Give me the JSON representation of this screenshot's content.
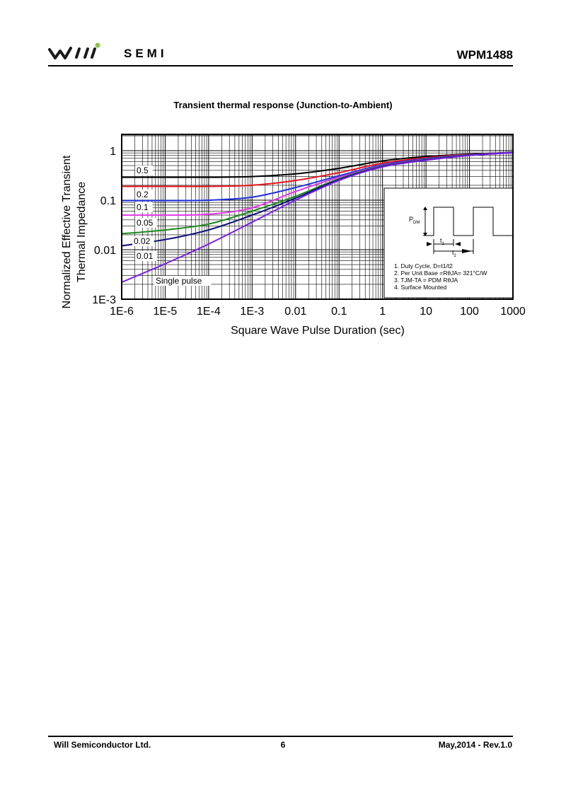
{
  "header": {
    "logo_text": "SEMI",
    "doc_id": "WPM1488",
    "brand_colors": {
      "wave": "#1a1a1a",
      "dot": "#8dc63f"
    }
  },
  "chart_data": {
    "type": "line",
    "title": "Transient thermal response (Junction-to-Ambient)",
    "xlabel": "Square Wave Pulse Duration (sec)",
    "ylabel_lines": [
      "Normalized Effective Transient",
      "Thermal Impedance"
    ],
    "x_scale": "log",
    "y_scale": "log",
    "xlim": [
      1e-06,
      1000
    ],
    "ylim": [
      0.001,
      2
    ],
    "x_ticks": [
      "1E-6",
      "1E-5",
      "1E-4",
      "1E-3",
      "0.01",
      "0.1",
      "1",
      "10",
      "100",
      "1000"
    ],
    "y_ticks": [
      "1E-3",
      "0.01",
      "0.1",
      "1"
    ],
    "grid": true,
    "x": [
      1e-06,
      1e-05,
      0.0001,
      0.001,
      0.01,
      0.1,
      1,
      10,
      100,
      1000
    ],
    "series": [
      {
        "name": "0.5",
        "color": "#000000",
        "values": [
          0.29,
          0.29,
          0.29,
          0.3,
          0.34,
          0.44,
          0.62,
          0.76,
          0.85,
          0.92
        ]
      },
      {
        "name": "0.2",
        "color": "#e8131b",
        "values": [
          0.19,
          0.19,
          0.19,
          0.2,
          0.25,
          0.36,
          0.56,
          0.72,
          0.84,
          0.92
        ]
      },
      {
        "name": "0.1",
        "color": "#1f2fe0",
        "values": [
          0.098,
          0.098,
          0.1,
          0.115,
          0.18,
          0.31,
          0.52,
          0.69,
          0.83,
          0.92
        ]
      },
      {
        "name": "0.05",
        "color": "#e334e8",
        "values": [
          0.05,
          0.05,
          0.052,
          0.07,
          0.15,
          0.29,
          0.5,
          0.67,
          0.82,
          0.91
        ]
      },
      {
        "name": "0.02",
        "color": "#1a8a1a",
        "values": [
          0.021,
          0.025,
          0.033,
          0.06,
          0.12,
          0.27,
          0.49,
          0.66,
          0.82,
          0.91
        ]
      },
      {
        "name": "0.01",
        "color": "#0b0b7a",
        "values": [
          0.012,
          0.016,
          0.025,
          0.05,
          0.11,
          0.26,
          0.48,
          0.65,
          0.81,
          0.91
        ]
      },
      {
        "name": "Single pulse",
        "color": "#7a1fe8",
        "values": [
          0.0022,
          0.0052,
          0.013,
          0.036,
          0.1,
          0.25,
          0.47,
          0.64,
          0.8,
          0.91
        ]
      }
    ],
    "inset": {
      "pdm_label": "P",
      "pdm_sub": "DM",
      "t1_label": "t",
      "t1_sub": "1",
      "t2_label": "t",
      "t2_sub": "2",
      "notes": [
        "1. Duty Cycle, D=t1/t2",
        "2. Per Unit Base =RθJA= 321°C/W",
        "3. TJM-TA = PDM RθJA",
        "4. Surface Mounted"
      ]
    }
  },
  "footer": {
    "company": "Will Semiconductor Ltd.",
    "page": "6",
    "revision": "May,2014 - Rev.1.0"
  }
}
